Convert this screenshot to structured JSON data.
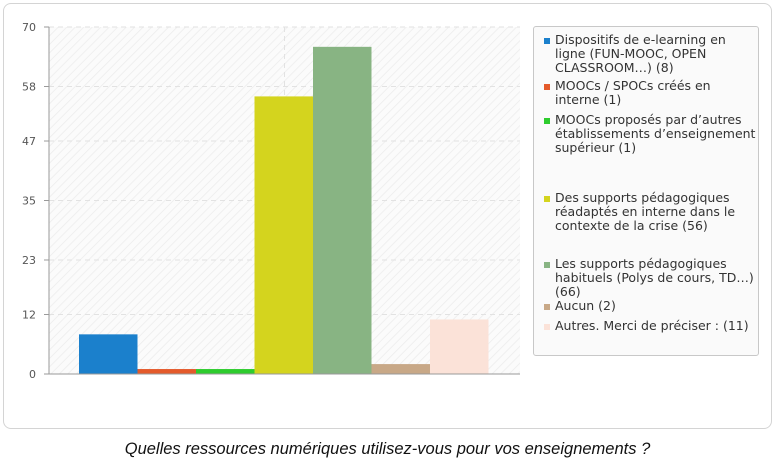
{
  "chart_data": {
    "type": "bar",
    "title": "",
    "xlabel": "",
    "ylabel": "",
    "ylim": [
      0,
      70
    ],
    "yticks": [
      "0",
      "12",
      "23",
      "35",
      "47",
      "58",
      "70"
    ],
    "grid": true,
    "legend_position": "right",
    "categories": [
      "Dispositifs de e-learning en ligne (FUN-MOOC, OPEN CLASSROOM…) (8)",
      "MOOCs / SPOCs créés en interne (1)",
      "MOOCs proposés par d’autres établissements d’enseignement supérieur (1)",
      "Des supports pédagogiques réadaptés en interne dans le contexte de la crise (56)",
      "Les supports pédagogiques habituels (Polys de cours, TD…) (66)",
      "Aucun (2)",
      "Autres. Merci de préciser : (11)"
    ],
    "values": [
      8,
      1,
      1,
      56,
      66,
      2,
      11
    ],
    "colors": [
      "#1b80cc",
      "#e45a2b",
      "#2ecc2e",
      "#d4d41e",
      "#88b483",
      "#c8a887",
      "#fbe2d8"
    ]
  },
  "caption": "Quelles ressources numériques utilisez-vous pour vos enseignements ?"
}
